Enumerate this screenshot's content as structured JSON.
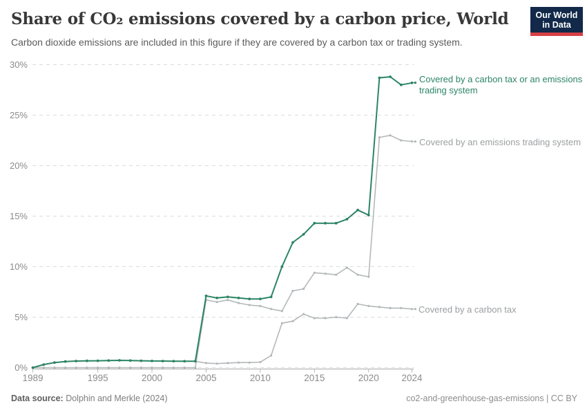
{
  "header": {
    "title": "Share of CO₂ emissions covered by a carbon price, World",
    "subtitle": "Carbon dioxide emissions are included in this figure if they are covered by a carbon tax or trading system.",
    "logo": {
      "line1": "Our World",
      "line2": "in Data",
      "bg_color": "#12294a",
      "accent_color": "#d64045"
    }
  },
  "footer": {
    "datasource_label": "Data source:",
    "datasource_value": " Dolphin and Merkle (2024)",
    "right_text": "co2-and-greenhouse-gas-emissions | CC BY"
  },
  "chart_data": {
    "type": "line",
    "title": "Share of CO₂ emissions covered by a carbon price, World",
    "xlabel": "",
    "ylabel": "",
    "xlim": [
      1989,
      2024
    ],
    "ylim": [
      0,
      30
    ],
    "grid": "horizontal-dashed",
    "legend_position": "right-of-line-ends",
    "x_ticks": [
      1989,
      1995,
      2000,
      2005,
      2010,
      2015,
      2020,
      2024
    ],
    "y_ticks": [
      0,
      5,
      10,
      15,
      20,
      25,
      30
    ],
    "y_tick_suffix": "%",
    "x": [
      1989,
      1990,
      1991,
      1992,
      1993,
      1994,
      1995,
      1996,
      1997,
      1998,
      1999,
      2000,
      2001,
      2002,
      2003,
      2004,
      2005,
      2006,
      2007,
      2008,
      2009,
      2010,
      2011,
      2012,
      2013,
      2014,
      2015,
      2016,
      2017,
      2018,
      2019,
      2020,
      2021,
      2022,
      2023,
      2024
    ],
    "series": [
      {
        "name": "Covered by a carbon tax",
        "label_line1": "Covered by a carbon tax",
        "label_line2": "",
        "color": "#b4b8ba",
        "text_color": "#9b9ea0",
        "values": [
          0,
          0.3,
          0.5,
          0.6,
          0.65,
          0.67,
          0.68,
          0.7,
          0.72,
          0.7,
          0.68,
          0.66,
          0.65,
          0.64,
          0.63,
          0.63,
          0.45,
          0.4,
          0.45,
          0.5,
          0.5,
          0.55,
          1.2,
          4.4,
          4.6,
          5.3,
          4.9,
          4.9,
          5.0,
          4.9,
          6.3,
          6.1,
          6.0,
          5.9,
          5.9,
          5.8
        ]
      },
      {
        "name": "Covered by an emissions trading system",
        "label_line1": "Covered by an emissions trading system",
        "label_line2": "",
        "color": "#b4b8ba",
        "text_color": "#9b9ea0",
        "values": [
          0,
          0,
          0,
          0,
          0,
          0,
          0,
          0,
          0,
          0,
          0,
          0,
          0,
          0,
          0,
          0,
          6.7,
          6.5,
          6.7,
          6.4,
          6.2,
          6.1,
          5.8,
          5.6,
          7.6,
          7.8,
          9.4,
          9.3,
          9.2,
          9.9,
          9.2,
          9.0,
          22.8,
          23.0,
          22.5,
          22.4
        ]
      },
      {
        "name": "Covered by a carbon tax or an emissions trading system",
        "label_line1": "Covered by a carbon tax or an emissions",
        "label_line2": "trading system",
        "color": "#2c8465",
        "text_color": "#2c8465",
        "values": [
          0,
          0.3,
          0.5,
          0.6,
          0.65,
          0.67,
          0.68,
          0.7,
          0.72,
          0.7,
          0.68,
          0.66,
          0.65,
          0.64,
          0.63,
          0.63,
          7.1,
          6.9,
          7.0,
          6.9,
          6.8,
          6.8,
          7.0,
          10.0,
          12.4,
          13.2,
          14.3,
          14.3,
          14.3,
          14.7,
          15.6,
          15.1,
          28.7,
          28.8,
          28.0,
          28.2
        ]
      }
    ]
  }
}
